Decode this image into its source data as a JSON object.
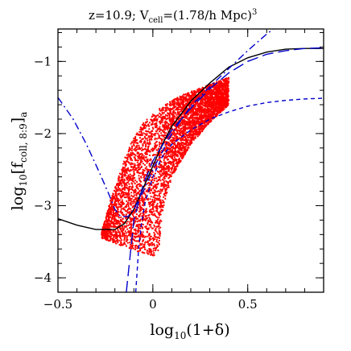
{
  "chart_data": {
    "type": "scatter",
    "title": "z=10.9; V",
    "title_sub": "cell",
    "title_rest": "=(1.78/h Mpc)",
    "title_sup": "3",
    "xlabel_pre": "log",
    "xlabel_sub": "10",
    "xlabel_post": "(1+δ)",
    "ylabel_pre": "log",
    "ylabel_sub": "10",
    "ylabel_bracket_open": "[f",
    "ylabel_inner_sub": "coll, 8:9",
    "ylabel_bracket_close": "]",
    "ylabel_a": "a",
    "xlim": [
      -0.5,
      0.9
    ],
    "ylim": [
      -4.2,
      -0.55
    ],
    "x_ticks": [
      {
        "value": -0.5,
        "label": "−0.5"
      },
      {
        "value": 0,
        "label": "0"
      },
      {
        "value": 0.5,
        "label": "0.5"
      }
    ],
    "y_ticks": [
      {
        "value": -4,
        "label": "−4"
      },
      {
        "value": -3,
        "label": "−3"
      },
      {
        "value": -2,
        "label": "−2"
      },
      {
        "value": -1,
        "label": "−1"
      }
    ],
    "colors": {
      "scatter": "#ff0000",
      "solid_curve": "#000000",
      "blue_curves": "#0000cc",
      "axes": "#000000"
    },
    "scatter_region": {
      "upper_boundary": [
        [
          -0.27,
          -3.35
        ],
        [
          -0.22,
          -2.9
        ],
        [
          -0.15,
          -2.35
        ],
        [
          -0.1,
          -2.05
        ],
        [
          -0.05,
          -1.85
        ],
        [
          0.05,
          -1.62
        ],
        [
          0.15,
          -1.47
        ],
        [
          0.25,
          -1.37
        ],
        [
          0.35,
          -1.27
        ],
        [
          0.4,
          -1.22
        ]
      ],
      "lower_boundary": [
        [
          -0.27,
          -3.45
        ],
        [
          -0.2,
          -3.52
        ],
        [
          -0.1,
          -3.62
        ],
        [
          0.0,
          -3.7
        ],
        [
          0.03,
          -3.65
        ],
        [
          0.05,
          -3.1
        ],
        [
          0.1,
          -2.6
        ],
        [
          0.2,
          -2.15
        ],
        [
          0.3,
          -1.85
        ],
        [
          0.4,
          -1.6
        ]
      ]
    },
    "series": [
      {
        "style": "solid",
        "points": [
          [
            -0.5,
            -3.18
          ],
          [
            -0.4,
            -3.27
          ],
          [
            -0.3,
            -3.33
          ],
          [
            -0.2,
            -3.33
          ],
          [
            -0.15,
            -3.25
          ],
          [
            -0.1,
            -3.05
          ],
          [
            -0.05,
            -2.75
          ],
          [
            0.0,
            -2.45
          ],
          [
            0.05,
            -2.15
          ],
          [
            0.1,
            -1.9
          ],
          [
            0.2,
            -1.55
          ],
          [
            0.3,
            -1.3
          ],
          [
            0.4,
            -1.08
          ],
          [
            0.5,
            -0.95
          ],
          [
            0.6,
            -0.87
          ],
          [
            0.7,
            -0.83
          ],
          [
            0.8,
            -0.82
          ],
          [
            0.9,
            -0.82
          ]
        ]
      },
      {
        "style": "dash-dot",
        "points": [
          [
            -0.5,
            -1.5
          ],
          [
            -0.42,
            -1.8
          ],
          [
            -0.35,
            -2.15
          ],
          [
            -0.28,
            -2.55
          ],
          [
            -0.23,
            -2.85
          ],
          [
            -0.2,
            -3.05
          ],
          [
            -0.17,
            -3.15
          ],
          [
            -0.13,
            -3.15
          ],
          [
            -0.1,
            -3.05
          ],
          [
            -0.05,
            -2.8
          ],
          [
            0.0,
            -2.5
          ],
          [
            0.05,
            -2.25
          ],
          [
            0.1,
            -2.0
          ],
          [
            0.2,
            -1.62
          ],
          [
            0.3,
            -1.35
          ],
          [
            0.4,
            -1.1
          ],
          [
            0.5,
            -0.85
          ],
          [
            0.6,
            -0.62
          ],
          [
            0.7,
            -0.42
          ],
          [
            0.8,
            -0.25
          ],
          [
            0.9,
            -0.05
          ]
        ]
      },
      {
        "style": "long-dash",
        "points": [
          [
            -0.14,
            -4.2
          ],
          [
            -0.12,
            -3.7
          ],
          [
            -0.1,
            -3.2
          ],
          [
            -0.05,
            -2.7
          ],
          [
            0.0,
            -2.38
          ],
          [
            0.1,
            -1.95
          ],
          [
            0.2,
            -1.65
          ],
          [
            0.3,
            -1.38
          ],
          [
            0.4,
            -1.16
          ],
          [
            0.5,
            -1.0
          ],
          [
            0.6,
            -0.9
          ],
          [
            0.7,
            -0.85
          ],
          [
            0.8,
            -0.82
          ],
          [
            0.9,
            -0.81
          ]
        ]
      },
      {
        "style": "short-dash",
        "points": [
          [
            -0.09,
            -4.2
          ],
          [
            -0.075,
            -3.6
          ],
          [
            -0.06,
            -3.25
          ],
          [
            -0.04,
            -2.95
          ],
          [
            0.0,
            -2.6
          ],
          [
            0.05,
            -2.32
          ],
          [
            0.1,
            -2.15
          ],
          [
            0.2,
            -1.95
          ],
          [
            0.3,
            -1.8
          ],
          [
            0.4,
            -1.7
          ],
          [
            0.5,
            -1.62
          ],
          [
            0.6,
            -1.57
          ],
          [
            0.7,
            -1.54
          ],
          [
            0.8,
            -1.52
          ],
          [
            0.9,
            -1.51
          ]
        ]
      }
    ]
  }
}
